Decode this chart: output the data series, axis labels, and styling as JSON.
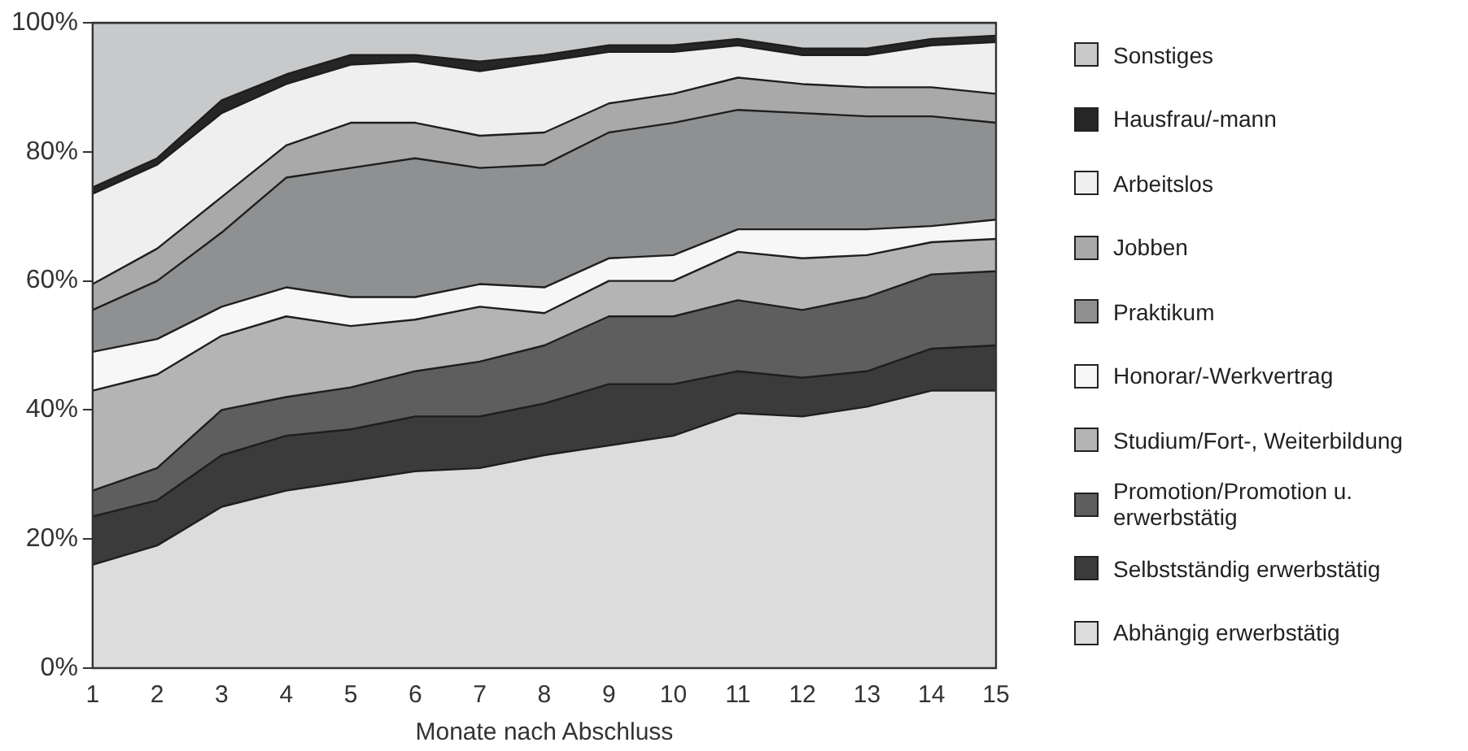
{
  "chart_data": {
    "type": "area",
    "stacked": true,
    "xlabel": "Monate nach Abschluss",
    "x": [
      1,
      2,
      3,
      4,
      5,
      6,
      7,
      8,
      9,
      10,
      11,
      12,
      13,
      14,
      15
    ],
    "xlim": [
      1,
      15
    ],
    "xticks": [
      1,
      2,
      3,
      4,
      5,
      6,
      7,
      8,
      9,
      10,
      11,
      12,
      13,
      14,
      15
    ],
    "ylim": [
      0,
      100
    ],
    "yticks": [
      {
        "value": 0,
        "label": "0%"
      },
      {
        "value": 20,
        "label": "20%"
      },
      {
        "value": 40,
        "label": "40%"
      },
      {
        "value": 60,
        "label": "60%"
      },
      {
        "value": 80,
        "label": "80%"
      },
      {
        "value": 100,
        "label": "100%"
      }
    ],
    "grid": false,
    "legend": "right",
    "series": [
      {
        "name": "Abhängig erwerbstätig",
        "color": "#dcdcdc",
        "values": [
          16,
          19,
          25,
          27.5,
          29,
          30.5,
          31,
          33,
          34.5,
          36,
          39.5,
          39,
          40.5,
          43,
          43
        ]
      },
      {
        "name": "Selbstständig erwerbstätig",
        "color": "#3a3b3a",
        "values": [
          7.5,
          7,
          8,
          8.5,
          8,
          8.5,
          8,
          8,
          9.5,
          8,
          6.5,
          6,
          5.5,
          6.5,
          7
        ]
      },
      {
        "name": "Promotion/Promotion u. erwerbstätig",
        "color": "#5e5e5e",
        "values": [
          4,
          5,
          7,
          6,
          6.5,
          7,
          8.5,
          9,
          10.5,
          10.5,
          11,
          10.5,
          11.5,
          11.5,
          11.5
        ]
      },
      {
        "name": "Studium/Fort-, Weiterbildung",
        "color": "#b4b4b4",
        "values": [
          15.5,
          14.5,
          11.5,
          12.5,
          9.5,
          8,
          8.5,
          5,
          5.5,
          5.5,
          7.5,
          8,
          6.5,
          5,
          5
        ]
      },
      {
        "name": "Honorar/-Werkvertrag",
        "color": "#f7f7f7",
        "values": [
          6,
          5.5,
          4.5,
          4.5,
          4.5,
          3.5,
          3.5,
          4,
          3.5,
          4,
          3.5,
          4.5,
          4,
          2.5,
          3
        ]
      },
      {
        "name": "Praktikum",
        "color": "#8f9091",
        "values": [
          6.5,
          9,
          11.5,
          17,
          20,
          21.5,
          18,
          19,
          19.5,
          20.5,
          18.5,
          18,
          17.5,
          17,
          15
        ]
      },
      {
        "name": "Jobben",
        "color": "#a9a9a9",
        "values": [
          4,
          5,
          5.5,
          5,
          7,
          5.5,
          5,
          5,
          4.5,
          4.5,
          5,
          4.5,
          4.5,
          4.5,
          4.5
        ]
      },
      {
        "name": "Arbeitslos",
        "color": "#efefef",
        "values": [
          14,
          13,
          13,
          9.5,
          9,
          9.5,
          10,
          11,
          8,
          6.5,
          5,
          4.5,
          5,
          6.5,
          8
        ]
      },
      {
        "name": "Hausfrau/-mann",
        "color": "#262626",
        "values": [
          1,
          1,
          2,
          1.5,
          1.5,
          1,
          1.5,
          1,
          1,
          1,
          1,
          1,
          1,
          1,
          1
        ]
      },
      {
        "name": "Sonstiges",
        "color": "#c8c9ca",
        "values": [
          25.5,
          21,
          12,
          8,
          5,
          5,
          6,
          5,
          3.5,
          3.5,
          2.5,
          4,
          4,
          2.5,
          2
        ]
      }
    ]
  }
}
